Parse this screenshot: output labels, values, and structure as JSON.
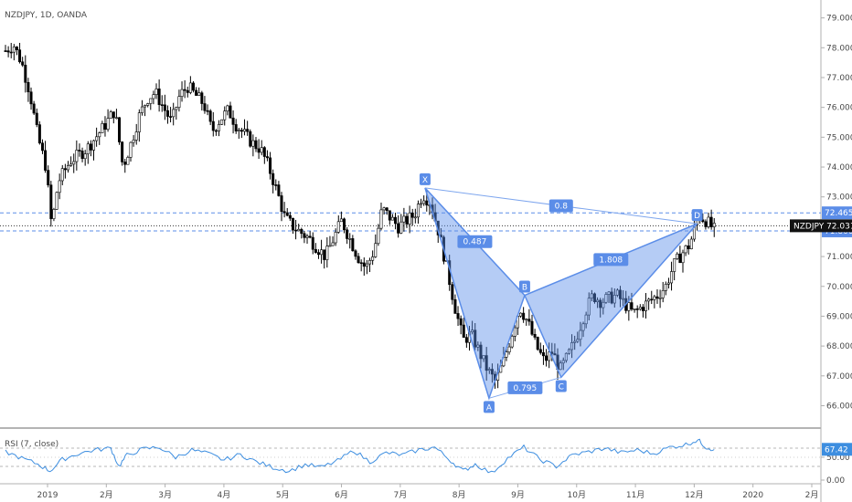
{
  "chart_data": [
    {
      "type": "candlestick",
      "symbol_label": "NZDJPY, 1D, OANDA",
      "y_ticks": [
        "79.000",
        "78.000",
        "77.000",
        "76.000",
        "75.000",
        "74.000",
        "73.000",
        "71.000",
        "70.000",
        "69.000",
        "68.000",
        "67.000",
        "66.000"
      ],
      "y_tick_values": [
        79,
        78,
        77,
        76,
        75,
        74,
        73,
        71,
        70,
        69,
        68,
        67,
        66
      ],
      "ylim": [
        65.25,
        79.6
      ],
      "x_ticks": [
        "2019",
        "2月",
        "3月",
        "4月",
        "5月",
        "6月",
        "7月",
        "8月",
        "9月",
        "10月",
        "11月",
        "12月",
        "2020",
        "2月"
      ],
      "current_price": {
        "label": "NZDJPY",
        "value": "72.031",
        "num": 72.031
      },
      "levels": [
        {
          "value": "72.465",
          "num": 72.465
        },
        {
          "value": "71.860",
          "num": 71.86
        }
      ],
      "pattern": {
        "points": [
          {
            "label": "X",
            "t": 0.518,
            "price": 73.3
          },
          {
            "label": "A",
            "t": 0.597,
            "price": 66.25
          },
          {
            "label": "B",
            "t": 0.641,
            "price": 69.7
          },
          {
            "label": "C",
            "t": 0.686,
            "price": 66.95
          },
          {
            "label": "D",
            "t": 0.854,
            "price": 72.1
          }
        ],
        "ratios": [
          {
            "value": "0.487",
            "from": 0,
            "to": 2
          },
          {
            "value": "0.795",
            "from": 1,
            "to": 3
          },
          {
            "value": "1.808",
            "from": 2,
            "to": 4
          },
          {
            "value": "0.8",
            "from": 0,
            "to": 4
          }
        ]
      },
      "price_path": [
        [
          0.0,
          77.9
        ],
        [
          0.01,
          78.1
        ],
        [
          0.02,
          77.5
        ],
        [
          0.03,
          76.5
        ],
        [
          0.04,
          75.0
        ],
        [
          0.05,
          74.0
        ],
        [
          0.057,
          72.0
        ],
        [
          0.065,
          73.5
        ],
        [
          0.08,
          74.2
        ],
        [
          0.1,
          74.6
        ],
        [
          0.12,
          75.3
        ],
        [
          0.135,
          75.9
        ],
        [
          0.145,
          74.0
        ],
        [
          0.155,
          74.8
        ],
        [
          0.165,
          75.7
        ],
        [
          0.175,
          76.3
        ],
        [
          0.185,
          76.5
        ],
        [
          0.195,
          76.0
        ],
        [
          0.205,
          75.5
        ],
        [
          0.215,
          76.4
        ],
        [
          0.225,
          76.7
        ],
        [
          0.235,
          76.4
        ],
        [
          0.245,
          76.1
        ],
        [
          0.255,
          75.2
        ],
        [
          0.265,
          75.6
        ],
        [
          0.275,
          75.9
        ],
        [
          0.285,
          75.4
        ],
        [
          0.295,
          75.1
        ],
        [
          0.305,
          74.8
        ],
        [
          0.315,
          74.6
        ],
        [
          0.325,
          74.0
        ],
        [
          0.335,
          73.2
        ],
        [
          0.345,
          72.3
        ],
        [
          0.355,
          72.0
        ],
        [
          0.365,
          71.8
        ],
        [
          0.375,
          71.6
        ],
        [
          0.385,
          71.3
        ],
        [
          0.395,
          71.0
        ],
        [
          0.405,
          71.6
        ],
        [
          0.415,
          72.2
        ],
        [
          0.425,
          71.6
        ],
        [
          0.435,
          71.0
        ],
        [
          0.445,
          70.6
        ],
        [
          0.455,
          71.2
        ],
        [
          0.465,
          72.6
        ],
        [
          0.475,
          72.3
        ],
        [
          0.485,
          72.0
        ],
        [
          0.495,
          72.2
        ],
        [
          0.505,
          72.4
        ],
        [
          0.515,
          73.1
        ],
        [
          0.525,
          72.8
        ],
        [
          0.535,
          71.8
        ],
        [
          0.545,
          70.6
        ],
        [
          0.555,
          69.3
        ],
        [
          0.565,
          68.2
        ],
        [
          0.575,
          68.4
        ],
        [
          0.585,
          67.8
        ],
        [
          0.595,
          67.2
        ],
        [
          0.605,
          66.8
        ],
        [
          0.615,
          67.5
        ],
        [
          0.625,
          68.4
        ],
        [
          0.635,
          69.3
        ],
        [
          0.645,
          68.8
        ],
        [
          0.655,
          68.0
        ],
        [
          0.665,
          67.5
        ],
        [
          0.675,
          67.8
        ],
        [
          0.685,
          67.2
        ],
        [
          0.695,
          67.7
        ],
        [
          0.705,
          68.3
        ],
        [
          0.715,
          69.1
        ],
        [
          0.725,
          69.7
        ],
        [
          0.735,
          69.5
        ],
        [
          0.745,
          69.6
        ],
        [
          0.755,
          69.7
        ],
        [
          0.765,
          69.4
        ],
        [
          0.775,
          69.1
        ],
        [
          0.785,
          69.3
        ],
        [
          0.795,
          69.5
        ],
        [
          0.805,
          69.7
        ],
        [
          0.815,
          70.0
        ],
        [
          0.825,
          70.7
        ],
        [
          0.835,
          71.1
        ],
        [
          0.845,
          71.4
        ],
        [
          0.855,
          72.4
        ],
        [
          0.865,
          72.2
        ],
        [
          0.875,
          71.9
        ]
      ]
    },
    {
      "type": "line",
      "legend": "RSI (7, close)",
      "current": {
        "value": "67.42",
        "num": 67.42
      },
      "y_ticks": [
        "50.00",
        "0.00"
      ],
      "y_tick_values": [
        50,
        0
      ],
      "ylim": [
        0,
        100
      ],
      "guide_levels": [
        70,
        30
      ],
      "series": [
        [
          0.0,
          62
        ],
        [
          0.02,
          48
        ],
        [
          0.04,
          35
        ],
        [
          0.055,
          20
        ],
        [
          0.07,
          45
        ],
        [
          0.09,
          58
        ],
        [
          0.11,
          66
        ],
        [
          0.13,
          70
        ],
        [
          0.14,
          30
        ],
        [
          0.15,
          55
        ],
        [
          0.17,
          68
        ],
        [
          0.19,
          72
        ],
        [
          0.21,
          50
        ],
        [
          0.23,
          66
        ],
        [
          0.25,
          58
        ],
        [
          0.27,
          44
        ],
        [
          0.29,
          56
        ],
        [
          0.31,
          40
        ],
        [
          0.33,
          28
        ],
        [
          0.35,
          20
        ],
        [
          0.37,
          34
        ],
        [
          0.39,
          28
        ],
        [
          0.41,
          42
        ],
        [
          0.43,
          65
        ],
        [
          0.45,
          40
        ],
        [
          0.47,
          60
        ],
        [
          0.49,
          55
        ],
        [
          0.51,
          66
        ],
        [
          0.53,
          72
        ],
        [
          0.55,
          42
        ],
        [
          0.565,
          20
        ],
        [
          0.58,
          35
        ],
        [
          0.6,
          15
        ],
        [
          0.62,
          48
        ],
        [
          0.64,
          72
        ],
        [
          0.66,
          45
        ],
        [
          0.68,
          30
        ],
        [
          0.7,
          55
        ],
        [
          0.72,
          62
        ],
        [
          0.74,
          70
        ],
        [
          0.76,
          60
        ],
        [
          0.78,
          66
        ],
        [
          0.8,
          58
        ],
        [
          0.82,
          72
        ],
        [
          0.84,
          78
        ],
        [
          0.855,
          88
        ],
        [
          0.865,
          72
        ],
        [
          0.875,
          67
        ]
      ]
    }
  ]
}
